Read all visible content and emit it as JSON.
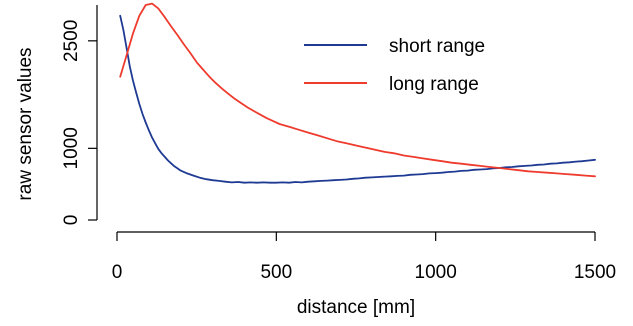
{
  "chart_data": {
    "type": "line",
    "title": "",
    "xlabel": "distance [mm]",
    "ylabel": "raw sensor values",
    "xlim": [
      0,
      1500
    ],
    "ylim": [
      0,
      3000
    ],
    "x_ticks": [
      0,
      500,
      1000,
      1500
    ],
    "x_tick_labels": [
      "0",
      "500",
      "1000",
      "1500"
    ],
    "y_ticks": [
      0,
      1000,
      2500
    ],
    "y_tick_labels": [
      "0",
      "1000",
      "2500"
    ],
    "grid": false,
    "legend_position": "top-right",
    "series": [
      {
        "name": "short range",
        "color": "#1f3a93",
        "points": [
          [
            10,
            2850
          ],
          [
            20,
            2650
          ],
          [
            30,
            2400
          ],
          [
            40,
            2150
          ],
          [
            50,
            1950
          ],
          [
            60,
            1780
          ],
          [
            70,
            1620
          ],
          [
            80,
            1480
          ],
          [
            90,
            1360
          ],
          [
            100,
            1250
          ],
          [
            110,
            1150
          ],
          [
            120,
            1070
          ],
          [
            130,
            990
          ],
          [
            140,
            930
          ],
          [
            150,
            880
          ],
          [
            160,
            830
          ],
          [
            170,
            790
          ],
          [
            180,
            750
          ],
          [
            190,
            720
          ],
          [
            200,
            690
          ],
          [
            220,
            650
          ],
          [
            240,
            620
          ],
          [
            260,
            590
          ],
          [
            280,
            570
          ],
          [
            300,
            555
          ],
          [
            320,
            545
          ],
          [
            340,
            535
          ],
          [
            360,
            525
          ],
          [
            380,
            530
          ],
          [
            400,
            520
          ],
          [
            420,
            525
          ],
          [
            440,
            520
          ],
          [
            460,
            525
          ],
          [
            480,
            520
          ],
          [
            500,
            520
          ],
          [
            520,
            525
          ],
          [
            540,
            520
          ],
          [
            560,
            530
          ],
          [
            580,
            525
          ],
          [
            600,
            535
          ],
          [
            620,
            540
          ],
          [
            640,
            545
          ],
          [
            660,
            550
          ],
          [
            680,
            555
          ],
          [
            700,
            560
          ],
          [
            720,
            565
          ],
          [
            740,
            575
          ],
          [
            760,
            580
          ],
          [
            780,
            590
          ],
          [
            800,
            595
          ],
          [
            820,
            600
          ],
          [
            840,
            605
          ],
          [
            860,
            610
          ],
          [
            880,
            615
          ],
          [
            900,
            620
          ],
          [
            920,
            630
          ],
          [
            940,
            635
          ],
          [
            960,
            640
          ],
          [
            980,
            650
          ],
          [
            1000,
            655
          ],
          [
            1020,
            660
          ],
          [
            1040,
            670
          ],
          [
            1060,
            675
          ],
          [
            1080,
            685
          ],
          [
            1100,
            690
          ],
          [
            1120,
            700
          ],
          [
            1140,
            705
          ],
          [
            1160,
            710
          ],
          [
            1180,
            720
          ],
          [
            1200,
            725
          ],
          [
            1220,
            735
          ],
          [
            1240,
            740
          ],
          [
            1260,
            750
          ],
          [
            1280,
            755
          ],
          [
            1300,
            760
          ],
          [
            1320,
            770
          ],
          [
            1340,
            775
          ],
          [
            1360,
            785
          ],
          [
            1380,
            790
          ],
          [
            1400,
            800
          ],
          [
            1420,
            805
          ],
          [
            1440,
            815
          ],
          [
            1460,
            820
          ],
          [
            1480,
            830
          ],
          [
            1500,
            840
          ]
        ]
      },
      {
        "name": "long range",
        "color": "#ee3b2e",
        "points": [
          [
            10,
            2000
          ],
          [
            30,
            2300
          ],
          [
            50,
            2600
          ],
          [
            70,
            2850
          ],
          [
            90,
            3000
          ],
          [
            110,
            3020
          ],
          [
            130,
            2950
          ],
          [
            150,
            2830
          ],
          [
            170,
            2700
          ],
          [
            190,
            2580
          ],
          [
            210,
            2450
          ],
          [
            230,
            2330
          ],
          [
            250,
            2200
          ],
          [
            270,
            2100
          ],
          [
            290,
            2000
          ],
          [
            310,
            1910
          ],
          [
            330,
            1830
          ],
          [
            350,
            1760
          ],
          [
            370,
            1690
          ],
          [
            390,
            1630
          ],
          [
            410,
            1570
          ],
          [
            430,
            1520
          ],
          [
            450,
            1470
          ],
          [
            470,
            1420
          ],
          [
            490,
            1380
          ],
          [
            510,
            1340
          ],
          [
            540,
            1300
          ],
          [
            570,
            1260
          ],
          [
            600,
            1220
          ],
          [
            630,
            1180
          ],
          [
            660,
            1140
          ],
          [
            690,
            1100
          ],
          [
            720,
            1070
          ],
          [
            750,
            1040
          ],
          [
            780,
            1010
          ],
          [
            810,
            980
          ],
          [
            840,
            950
          ],
          [
            870,
            930
          ],
          [
            900,
            900
          ],
          [
            930,
            880
          ],
          [
            960,
            860
          ],
          [
            990,
            840
          ],
          [
            1020,
            820
          ],
          [
            1050,
            800
          ],
          [
            1080,
            785
          ],
          [
            1110,
            770
          ],
          [
            1140,
            755
          ],
          [
            1170,
            740
          ],
          [
            1200,
            725
          ],
          [
            1230,
            710
          ],
          [
            1260,
            695
          ],
          [
            1290,
            680
          ],
          [
            1320,
            670
          ],
          [
            1350,
            660
          ],
          [
            1380,
            650
          ],
          [
            1410,
            640
          ],
          [
            1440,
            630
          ],
          [
            1470,
            620
          ],
          [
            1500,
            610
          ]
        ]
      }
    ]
  }
}
